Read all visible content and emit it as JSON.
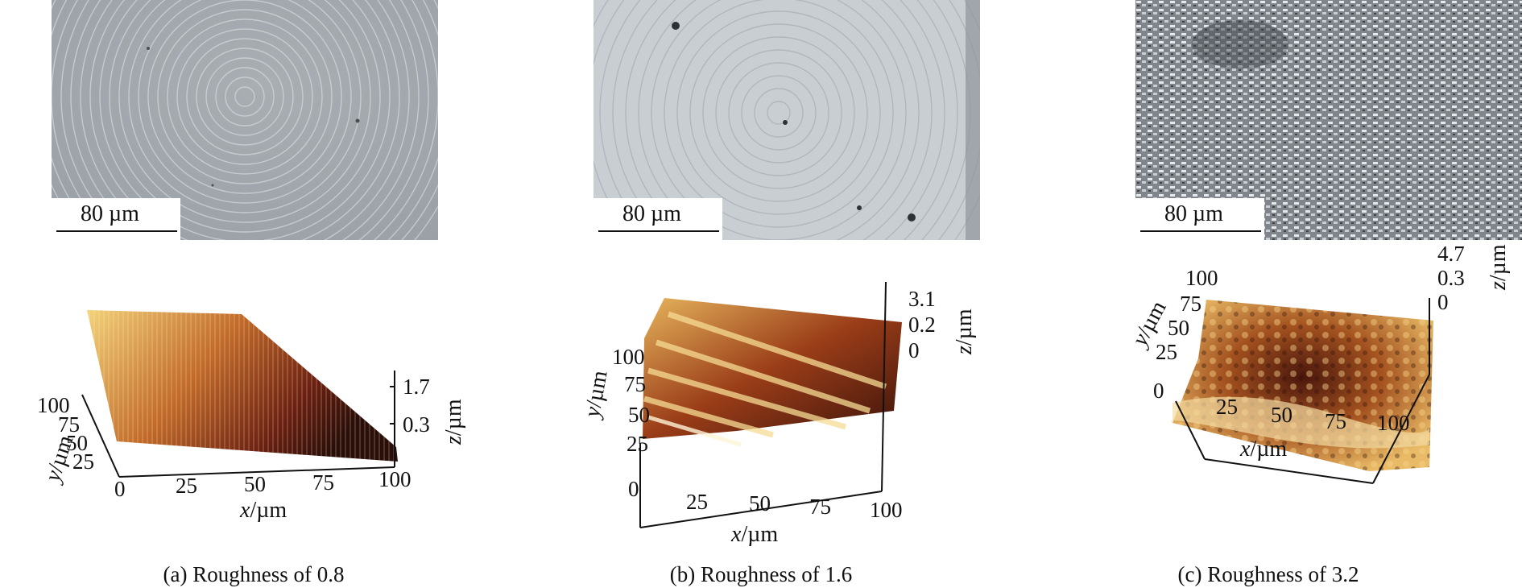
{
  "panels": [
    {
      "scale_label": "80 µm",
      "caption": "(a) Roughness of 0.8",
      "afm": {
        "x_axis": {
          "var": "x",
          "unit": "/µm",
          "ticks": [
            "0",
            "25",
            "50",
            "75",
            "100"
          ]
        },
        "y_axis": {
          "var": "y",
          "unit": "/µm",
          "ticks": [
            "25",
            "50",
            "75",
            "100"
          ]
        },
        "z_axis": {
          "var": "z",
          "unit": "/µm",
          "ticks": [
            "0.3",
            "1.7"
          ]
        }
      }
    },
    {
      "scale_label": "80 µm",
      "caption": "(b) Roughness of 1.6",
      "afm": {
        "x_axis": {
          "var": "x",
          "unit": "/µm",
          "ticks": [
            "0",
            "25",
            "50",
            "75",
            "100"
          ]
        },
        "y_axis": {
          "var": "y",
          "unit": "/µm",
          "ticks": [
            "25",
            "50",
            "75",
            "100"
          ]
        },
        "z_axis": {
          "var": "z",
          "unit": "/µm",
          "ticks": [
            "0",
            "0.2",
            "3.1"
          ]
        }
      }
    },
    {
      "scale_label": "80 µm",
      "caption": "(c) Roughness of 3.2",
      "afm": {
        "x_axis": {
          "var": "x",
          "unit": "/µm",
          "ticks": [
            "0",
            "25",
            "50",
            "75",
            "100"
          ]
        },
        "y_axis": {
          "var": "y",
          "unit": "/µm",
          "ticks": [
            "25",
            "50",
            "75",
            "100"
          ]
        },
        "z_axis": {
          "var": "z",
          "unit": "/µm",
          "ticks": [
            "0",
            "0.3",
            "4.7"
          ]
        }
      }
    }
  ],
  "colors": {
    "afm_light": "#f3d27a",
    "afm_mid": "#c26a2a",
    "afm_dark": "#3a120a",
    "sem_light": "#c9ced3",
    "sem_dark": "#8f959b"
  }
}
